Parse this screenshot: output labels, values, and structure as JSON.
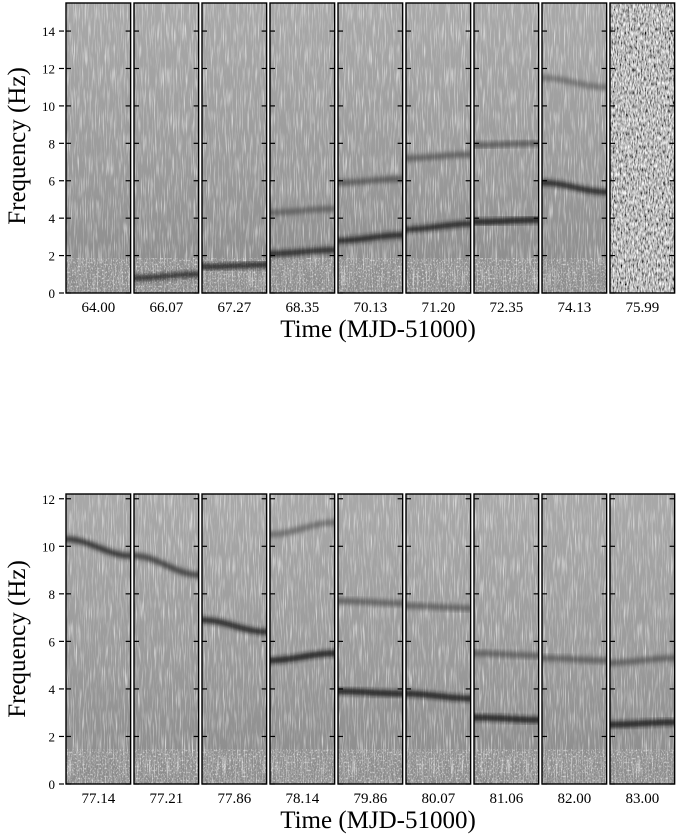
{
  "chart_data": [
    {
      "type": "heatmap",
      "description_panel": "top",
      "xlabel": "Time (MJD-51000)",
      "ylabel": "Frequency (Hz)",
      "ylim": [
        0,
        15.5
      ],
      "yticks": [
        0,
        2,
        4,
        6,
        8,
        10,
        12,
        14
      ],
      "colormap": "grayscale, darker = higher power",
      "panels": [
        {
          "label": "64.00",
          "qpo": []
        },
        {
          "label": "66.07",
          "qpo": [
            {
              "start": 0.8,
              "end": 1.0,
              "strength": 0.8
            }
          ]
        },
        {
          "label": "67.27",
          "qpo": [
            {
              "start": 1.4,
              "end": 1.5,
              "strength": 0.85
            }
          ]
        },
        {
          "label": "68.35",
          "qpo": [
            {
              "start": 2.1,
              "end": 2.3,
              "strength": 0.85
            },
            {
              "start": 4.3,
              "end": 4.5,
              "strength": 0.4
            }
          ]
        },
        {
          "label": "70.13",
          "qpo": [
            {
              "start": 2.8,
              "end": 3.1,
              "strength": 0.9
            },
            {
              "start": 5.9,
              "end": 6.1,
              "strength": 0.5
            }
          ]
        },
        {
          "label": "71.20",
          "qpo": [
            {
              "start": 3.4,
              "end": 3.7,
              "strength": 0.9
            },
            {
              "start": 7.2,
              "end": 7.4,
              "strength": 0.45
            }
          ]
        },
        {
          "label": "72.35",
          "qpo": [
            {
              "start": 3.8,
              "end": 3.9,
              "strength": 0.95
            },
            {
              "start": 7.9,
              "end": 8.0,
              "strength": 0.5
            }
          ]
        },
        {
          "label": "74.13",
          "qpo": [
            {
              "start": 5.9,
              "end": 5.4,
              "strength": 0.9
            },
            {
              "start": 11.5,
              "end": 11.0,
              "strength": 0.3
            }
          ]
        },
        {
          "label": "75.99",
          "qpo": [],
          "noisy": true
        }
      ]
    },
    {
      "type": "heatmap",
      "description_panel": "bottom",
      "xlabel": "Time (MJD-51000)",
      "ylabel": "Frequency (Hz)",
      "ylim": [
        0,
        12.2
      ],
      "yticks": [
        0,
        2,
        4,
        6,
        8,
        10,
        12
      ],
      "colormap": "grayscale, darker = higher power",
      "panels": [
        {
          "label": "77.14",
          "qpo": [
            {
              "start": 10.3,
              "end": 9.6,
              "strength": 0.8
            }
          ]
        },
        {
          "label": "77.21",
          "qpo": [
            {
              "start": 9.6,
              "end": 8.8,
              "strength": 0.7
            }
          ]
        },
        {
          "label": "77.86",
          "qpo": [
            {
              "start": 6.9,
              "end": 6.4,
              "strength": 0.9
            }
          ]
        },
        {
          "label": "78.14",
          "qpo": [
            {
              "start": 5.2,
              "end": 5.5,
              "strength": 0.95
            },
            {
              "start": 10.5,
              "end": 11.0,
              "strength": 0.35
            }
          ]
        },
        {
          "label": "79.86",
          "qpo": [
            {
              "start": 3.9,
              "end": 3.8,
              "strength": 0.95
            },
            {
              "start": 7.7,
              "end": 7.6,
              "strength": 0.45
            }
          ]
        },
        {
          "label": "80.07",
          "qpo": [
            {
              "start": 3.8,
              "end": 3.6,
              "strength": 0.95
            },
            {
              "start": 7.5,
              "end": 7.4,
              "strength": 0.45
            }
          ]
        },
        {
          "label": "81.06",
          "qpo": [
            {
              "start": 2.8,
              "end": 2.7,
              "strength": 0.95
            },
            {
              "start": 5.5,
              "end": 5.4,
              "strength": 0.45
            }
          ]
        },
        {
          "label": "82.00",
          "qpo": [
            {
              "start": 2.6,
              "end": 2.6,
              "strength": 0.95
            },
            {
              "start": 5.3,
              "end": 5.2,
              "strength": 0.45
            }
          ]
        },
        {
          "label": "83.00",
          "qpo": [
            {
              "start": 2.5,
              "end": 2.6,
              "strength": 0.95
            },
            {
              "start": 5.1,
              "end": 5.3,
              "strength": 0.45
            }
          ]
        }
      ]
    }
  ]
}
